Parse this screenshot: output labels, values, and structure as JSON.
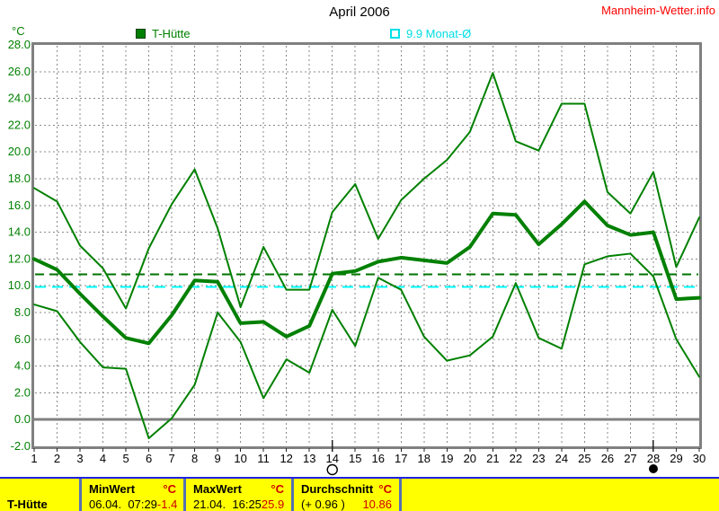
{
  "header": {
    "title": "April 2006",
    "site_link": "Mannheim-Wetter.info"
  },
  "chart_data": {
    "type": "line",
    "title": "April 2006",
    "ylabel": "°C",
    "ylim": [
      -2,
      28
    ],
    "ytick_step": 2,
    "grid": true,
    "legend_position": "top",
    "legend": [
      {
        "label": "T-Hütte",
        "color": "#008000",
        "swatch": "filled"
      },
      {
        "label": "9.9 Monat-Ø",
        "color": "#00ffff",
        "swatch": "open"
      }
    ],
    "x": [
      1,
      2,
      3,
      4,
      5,
      6,
      7,
      8,
      9,
      10,
      11,
      12,
      13,
      14,
      15,
      16,
      17,
      18,
      19,
      20,
      21,
      22,
      23,
      24,
      25,
      26,
      27,
      28,
      29,
      30
    ],
    "series": [
      {
        "name": "daily-max",
        "color": "#008000",
        "width": 2,
        "values": [
          17.3,
          16.3,
          13.0,
          11.3,
          8.3,
          12.8,
          16.1,
          18.7,
          14.3,
          8.4,
          12.9,
          9.7,
          9.7,
          15.5,
          17.6,
          13.5,
          16.4,
          18.0,
          19.4,
          21.5,
          25.9,
          20.8,
          20.1,
          23.6,
          23.6,
          17.0,
          15.4,
          18.5,
          11.4,
          15.1
        ]
      },
      {
        "name": "daily-mean",
        "color": "#008000",
        "width": 4,
        "values": [
          12.0,
          11.2,
          9.4,
          7.7,
          6.1,
          5.7,
          7.8,
          10.4,
          10.3,
          7.2,
          7.3,
          6.2,
          7.0,
          10.9,
          11.1,
          11.8,
          12.1,
          11.9,
          11.7,
          12.9,
          15.4,
          15.3,
          13.1,
          14.6,
          16.3,
          14.5,
          13.8,
          14.0,
          9.0,
          9.1
        ]
      },
      {
        "name": "daily-min",
        "color": "#008000",
        "width": 2,
        "values": [
          8.6,
          8.1,
          5.8,
          3.9,
          3.8,
          -1.4,
          0.1,
          2.6,
          8.0,
          5.8,
          1.6,
          4.5,
          3.5,
          8.2,
          5.5,
          10.6,
          9.7,
          6.2,
          4.4,
          4.8,
          6.2,
          10.2,
          6.1,
          5.3,
          11.6,
          12.2,
          12.4,
          10.7,
          6.0,
          3.2
        ]
      }
    ],
    "reference_lines": [
      {
        "name": "month-average-2006",
        "value": 10.86,
        "color": "#007300",
        "dash": "10,6",
        "width": 2
      },
      {
        "name": "longterm-month-average",
        "value": 9.9,
        "color": "#00ffff",
        "dash": "12,7",
        "width": 2
      }
    ],
    "moon_markers": [
      {
        "day": 14,
        "phase": "full"
      },
      {
        "day": 28,
        "phase": "new"
      }
    ]
  },
  "table": {
    "row_label": "T-Hütte",
    "min": {
      "header": "MinWert",
      "unit": "°C",
      "datetime": "06.04.  07:29",
      "value": "-1.4"
    },
    "max": {
      "header": "MaxWert",
      "unit": "°C",
      "datetime": "21.04.  16:25",
      "value": "25.9"
    },
    "avg": {
      "header": "Durchschnitt",
      "unit": "°C",
      "deviation": "(+ 0.96 )",
      "value": "10.86"
    }
  }
}
